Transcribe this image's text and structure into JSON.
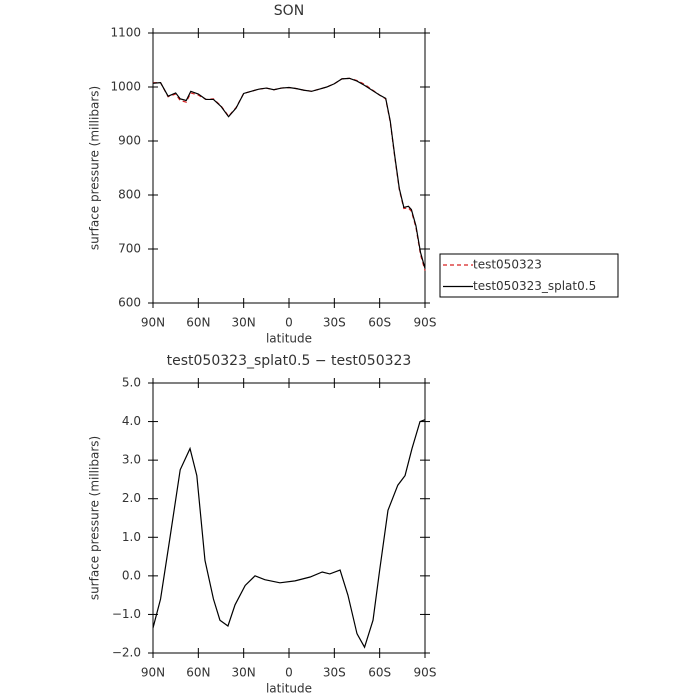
{
  "chart_data": [
    {
      "type": "line",
      "title": "SON",
      "xlabel": "latitude",
      "ylabel": "surface pressure (millibars)",
      "x": [
        90,
        85,
        80,
        75,
        72,
        68,
        65,
        60,
        55,
        50,
        45,
        40,
        35,
        30,
        25,
        20,
        15,
        10,
        5,
        0,
        -5,
        -10,
        -15,
        -20,
        -25,
        -30,
        -35,
        -40,
        -45,
        -50,
        -55,
        -60,
        -64,
        -67,
        -70,
        -73,
        -76,
        -79,
        -81,
        -84,
        -87,
        -90
      ],
      "xlim": [
        90,
        -90
      ],
      "xticks": [
        {
          "value": 90,
          "label": "90N"
        },
        {
          "value": 60,
          "label": "60N"
        },
        {
          "value": 30,
          "label": "30N"
        },
        0,
        {
          "value": -30,
          "label": "30S"
        },
        {
          "value": -60,
          "label": "60S"
        },
        {
          "value": -90,
          "label": "90S"
        }
      ],
      "ylim": [
        600,
        1100
      ],
      "yticks": [
        600,
        700,
        800,
        900,
        1000,
        1100
      ],
      "legend": "right",
      "series": [
        {
          "name": "test050323",
          "color": "#d62020",
          "dashed": true,
          "values": [
            1008,
            1008,
            982,
            987,
            975,
            972,
            989,
            985,
            977,
            978,
            965,
            946,
            962,
            988,
            992,
            996,
            998,
            995,
            998,
            999,
            997,
            994,
            992,
            996,
            1000,
            1006,
            1015,
            1016,
            1012,
            1005,
            995,
            985,
            978,
            935,
            870,
            810,
            775,
            776,
            770,
            740,
            690,
            660
          ]
        },
        {
          "name": "test050323_splat0.5",
          "color": "#000000",
          "dashed": false,
          "values": [
            1007,
            1008,
            983,
            989,
            978,
            975,
            992,
            987,
            977,
            977,
            964,
            945,
            961,
            988,
            992,
            996,
            998,
            995,
            998,
            999,
            997,
            994,
            992,
            996,
            1000,
            1006,
            1015,
            1016,
            1011,
            1003,
            994,
            985,
            979,
            937,
            872,
            812,
            777,
            779,
            773,
            743,
            694,
            664
          ]
        }
      ]
    },
    {
      "type": "line",
      "title": "test050323_splat0.5 − test050323",
      "xlabel": "latitude",
      "ylabel": "surface pressure (millibars)",
      "x": [
        90,
        85,
        79,
        72,
        65.5,
        61,
        55.6,
        50,
        45.7,
        40.4,
        35.7,
        29,
        22.5,
        16,
        6,
        -4,
        -14,
        -22,
        -27,
        -33.8,
        -39,
        -45,
        -50,
        -55.6,
        -60,
        -65.5,
        -72,
        -76.8,
        -81.4,
        -86.7,
        -90
      ],
      "xlim": [
        90,
        -90
      ],
      "xticks": [
        {
          "value": 90,
          "label": "90N"
        },
        {
          "value": 60,
          "label": "60N"
        },
        {
          "value": 30,
          "label": "30N"
        },
        0,
        {
          "value": -30,
          "label": "30S"
        },
        {
          "value": -60,
          "label": "60S"
        },
        {
          "value": -90,
          "label": "90S"
        }
      ],
      "ylim": [
        -2,
        5
      ],
      "yticks": [
        {
          "value": -2,
          "label": "−2.0"
        },
        {
          "value": -1,
          "label": "−1.0"
        },
        {
          "value": 0,
          "label": "0.0"
        },
        {
          "value": 1,
          "label": "1.0"
        },
        {
          "value": 2,
          "label": "2.0"
        },
        {
          "value": 3,
          "label": "3.0"
        },
        {
          "value": 4,
          "label": "4.0"
        },
        {
          "value": 5,
          "label": "5.0"
        }
      ],
      "series": [
        {
          "color": "#000000",
          "dashed": false,
          "values": [
            -1.35,
            -0.6,
            0.93,
            2.75,
            3.3,
            2.6,
            0.4,
            -0.6,
            -1.15,
            -1.3,
            -0.75,
            -0.25,
            0,
            -0.1,
            -0.18,
            -0.13,
            -0.03,
            0.1,
            0.05,
            0.15,
            -0.5,
            -1.5,
            -1.85,
            -1.15,
            0.15,
            1.7,
            2.35,
            2.6,
            3.3,
            4.0,
            4.05
          ]
        }
      ]
    }
  ]
}
